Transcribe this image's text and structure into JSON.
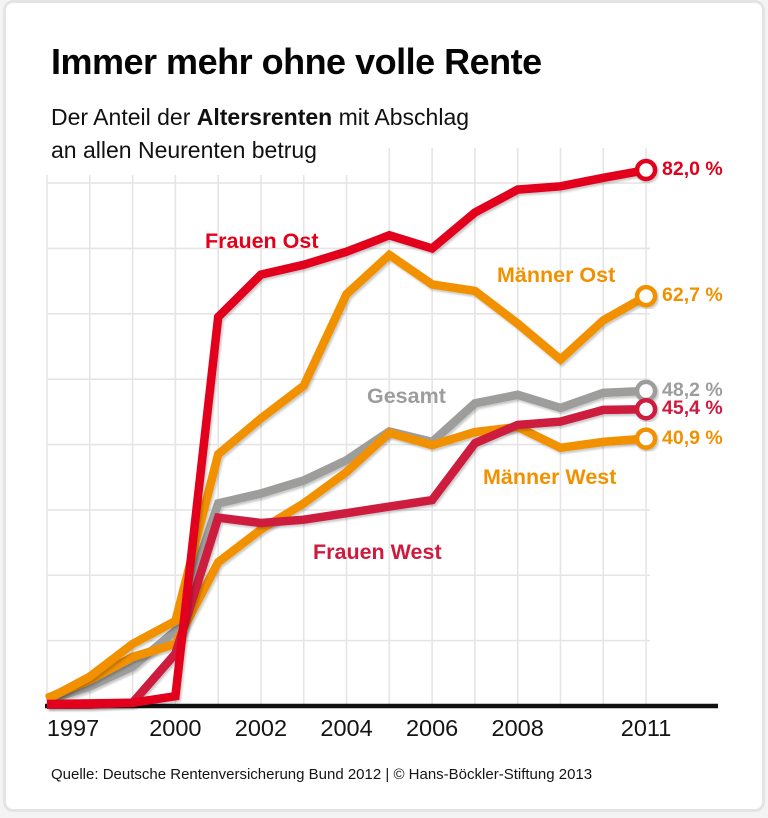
{
  "header": {
    "title": "Immer mehr ohne volle Rente",
    "subtitle_pre": "Der Anteil der ",
    "subtitle_bold": "Altersrenten",
    "subtitle_post": " mit Abschlag",
    "subtitle_line2": "an allen Neurenten betrug"
  },
  "chart_data": {
    "type": "line",
    "title": "Immer mehr ohne volle Rente",
    "subtitle": "Der Anteil der Altersrenten mit Abschlag an allen Neurenten betrug",
    "unit": "%",
    "x": [
      1997,
      1998,
      1999,
      2000,
      2001,
      2002,
      2003,
      2004,
      2005,
      2006,
      2007,
      2008,
      2009,
      2010,
      2011
    ],
    "x_ticks": [
      {
        "year": 1997,
        "label": "1997"
      },
      {
        "year": 2000,
        "label": "2000"
      },
      {
        "year": 2002,
        "label": "2002"
      },
      {
        "year": 2004,
        "label": "2004"
      },
      {
        "year": 2006,
        "label": "2006"
      },
      {
        "year": 2008,
        "label": "2008"
      },
      {
        "year": 2011,
        "label": "2011"
      }
    ],
    "ylim": [
      0,
      85
    ],
    "grid": true,
    "legend_position": "inline-labels",
    "series": [
      {
        "name": "Frauen Ost",
        "color": "#e2001a",
        "values": [
          0.3,
          0.4,
          0.5,
          1.5,
          59.5,
          66.0,
          67.5,
          69.5,
          72.0,
          70.0,
          75.5,
          79.0,
          79.5,
          80.8,
          82.0
        ],
        "end_label": "82,0 %"
      },
      {
        "name": "Männer Ost",
        "color": "#f29100",
        "values": [
          1.0,
          4.5,
          9.5,
          13.0,
          38.5,
          44.0,
          49.0,
          63.0,
          69.0,
          64.5,
          63.5,
          58.5,
          53.0,
          59.0,
          62.7
        ],
        "end_label": "62,7 %"
      },
      {
        "name": "Gesamt",
        "color": "#9d9d9c",
        "values": [
          0.8,
          3.0,
          6.0,
          11.5,
          31.0,
          32.5,
          34.5,
          37.6,
          42.0,
          40.4,
          46.3,
          47.6,
          45.6,
          47.9,
          48.2
        ],
        "end_label": "48,2 %"
      },
      {
        "name": "Frauen West",
        "color": "#cd1a3e",
        "values": [
          0.2,
          0.2,
          0.5,
          8.0,
          28.8,
          28.0,
          28.5,
          29.5,
          30.5,
          31.5,
          40.2,
          43.0,
          43.5,
          45.3,
          45.4
        ],
        "end_label": "45,4 %"
      },
      {
        "name": "Männer West",
        "color": "#f29100",
        "values": [
          1.2,
          4.0,
          7.5,
          9.5,
          22.0,
          27.0,
          31.0,
          35.8,
          41.8,
          39.9,
          41.9,
          42.7,
          39.5,
          40.4,
          40.9
        ],
        "end_label": "40,9 %"
      }
    ],
    "colors": {
      "grid": "#e7e4e4",
      "axis": "#111111"
    }
  },
  "footer": {
    "source": "Quelle: Deutsche Rentenversicherung Bund 2012 | © Hans-Böckler-Stiftung 2013"
  }
}
